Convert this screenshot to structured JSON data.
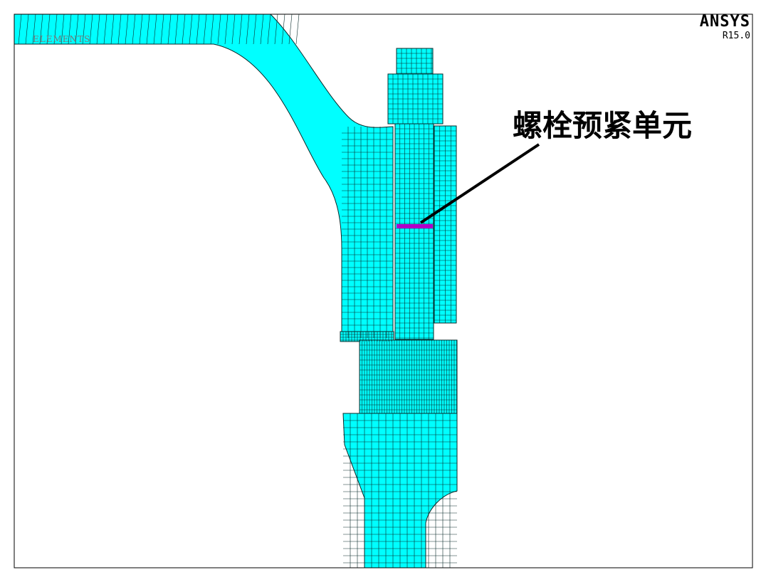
{
  "window": {
    "plot_label": "ELEMENTS",
    "product": "ANSYS",
    "version": "R15.0"
  },
  "annotation": {
    "label": "螺栓预紧单元"
  },
  "colors": {
    "mesh_fill": "#00ffff",
    "mesh_line": "#0a2a2a",
    "pretension_element": "#b000c8",
    "frame": "#000000",
    "background": "#ffffff"
  }
}
